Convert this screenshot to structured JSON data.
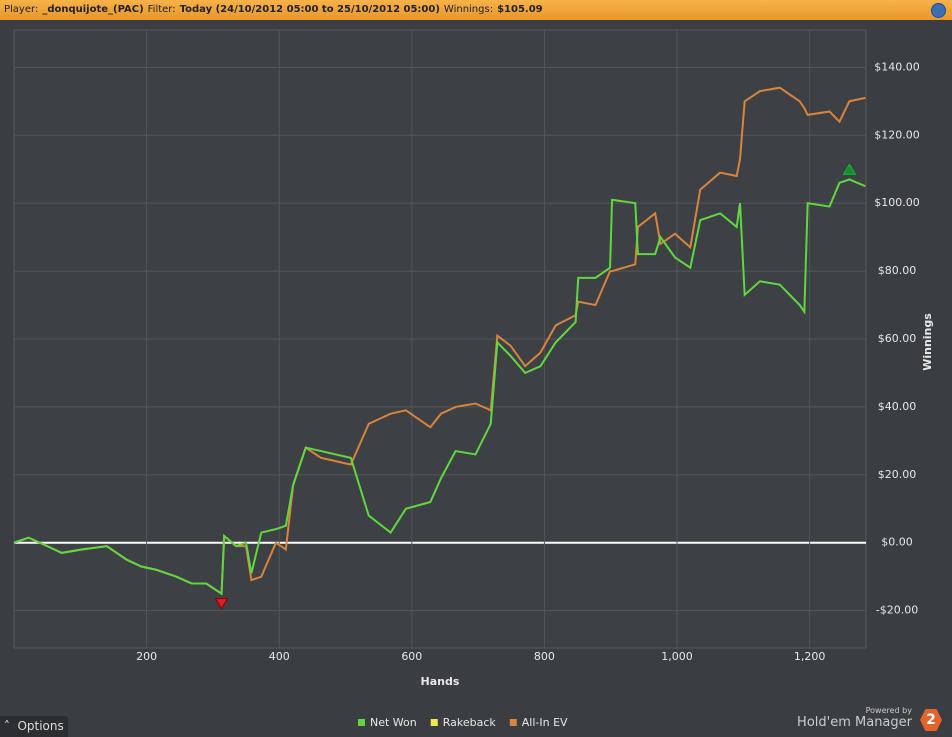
{
  "header": {
    "player_label": "Player:",
    "player": "_donquijote_(PAC)",
    "filter_label": "Filter:",
    "filter": "Today (24/10/2012 05:00 to 25/10/2012 05:00)",
    "winnings_label": "Winnings:",
    "winnings": "$105.09"
  },
  "footer": {
    "options": "Options",
    "powered_by": "Powered by",
    "brand": "Hold'em Manager",
    "badge": "2"
  },
  "chart_data": {
    "type": "line",
    "x_label": "Hands",
    "y_label": "Winnings",
    "x": [
      0,
      22,
      50,
      72,
      102,
      140,
      170,
      192,
      215,
      245,
      268,
      290,
      313,
      317,
      335,
      350,
      358,
      373,
      395,
      410,
      421,
      440,
      463,
      508,
      535,
      568,
      591,
      628,
      644,
      666,
      696,
      719,
      729,
      749,
      771,
      794,
      817,
      847,
      851,
      877,
      899,
      902,
      937,
      941,
      967,
      975,
      997,
      1020,
      1035,
      1065,
      1090,
      1095,
      1102,
      1125,
      1155,
      1185,
      1192,
      1197,
      1230,
      1245,
      1260,
      1284
    ],
    "series": [
      {
        "name": "Net Won",
        "color": "#5fd83f",
        "values": [
          0,
          1.5,
          -1,
          -3,
          -2,
          -1,
          -5,
          -7,
          -8,
          -10,
          -12,
          -12,
          -15,
          2,
          -1,
          0,
          -9,
          3,
          4,
          5,
          17,
          28,
          27,
          25,
          8,
          3,
          10,
          12,
          19,
          27,
          26,
          35,
          59,
          55,
          50,
          52,
          59,
          65,
          78,
          78,
          81,
          101,
          100,
          85,
          85,
          90,
          84,
          81,
          95,
          97,
          93,
          100,
          73,
          77,
          76,
          70,
          68,
          100,
          99,
          106,
          107,
          105
        ]
      },
      {
        "name": "Rakeback",
        "color": "#f0e84a",
        "values": [
          null,
          null,
          null,
          null,
          null,
          null,
          null,
          null,
          null,
          null,
          null,
          null,
          null,
          null,
          null,
          null,
          null,
          null,
          null,
          null,
          null,
          null,
          null,
          null,
          null,
          null,
          null,
          null,
          null,
          null,
          null,
          null,
          null,
          null,
          null,
          null,
          null,
          null,
          null,
          null,
          null,
          null,
          null,
          null,
          null,
          null,
          null,
          null,
          null,
          null,
          null,
          null,
          null,
          null,
          null,
          null,
          null,
          null,
          null,
          null,
          null,
          null
        ]
      },
      {
        "name": "All-In EV",
        "color": "#d9843c",
        "values": [
          0,
          1.5,
          -1,
          -3,
          -2,
          -1,
          -5,
          -7,
          -8,
          -10,
          -12,
          -12,
          -15,
          2,
          -1,
          -1,
          -11,
          -10,
          0,
          -2,
          17,
          28,
          25,
          23,
          35,
          38,
          39,
          34,
          38,
          40,
          41,
          39,
          61,
          58,
          52,
          56,
          64,
          67,
          71,
          70,
          80,
          80,
          82,
          93,
          97,
          88,
          91,
          87,
          104,
          109,
          108,
          113,
          130,
          133,
          134,
          130,
          128,
          126,
          127,
          124,
          130,
          131
        ]
      }
    ],
    "xlim": [
      0,
      1285
    ],
    "ylim": [
      -31,
      151
    ],
    "xticks": [
      200,
      400,
      600,
      800,
      {
        "value": 1000,
        "label": "1,000"
      },
      {
        "value": 1200,
        "label": "1,200"
      }
    ],
    "yticks": [
      {
        "value": -20,
        "label": "-$20.00"
      },
      {
        "value": 0,
        "label": "$0.00"
      },
      {
        "value": 20,
        "label": "$20.00"
      },
      {
        "value": 40,
        "label": "$40.00"
      },
      {
        "value": 60,
        "label": "$60.00"
      },
      {
        "value": 80,
        "label": "$80.00"
      },
      {
        "value": 100,
        "label": "$100.00"
      },
      {
        "value": 120,
        "label": "$120.00"
      },
      {
        "value": 140,
        "label": "$140.00"
      }
    ],
    "grid": true
  }
}
